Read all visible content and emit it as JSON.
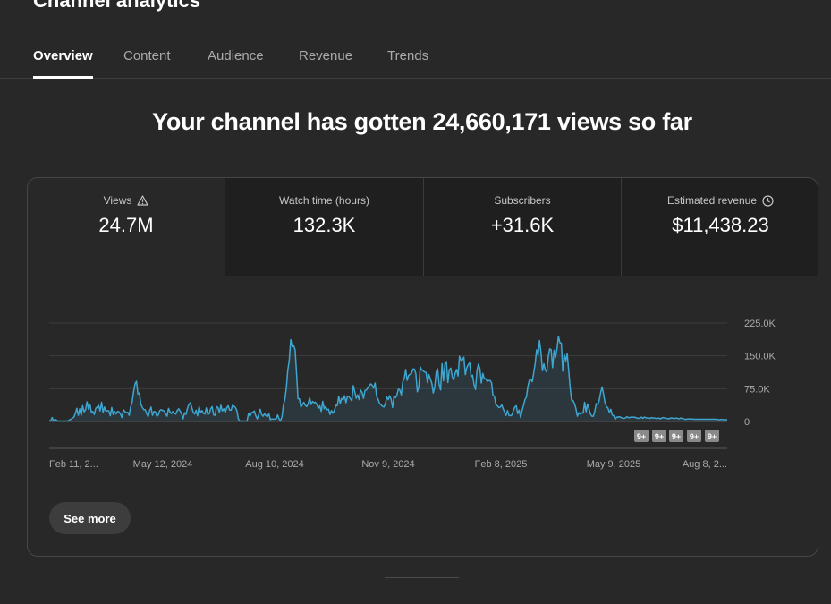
{
  "page": {
    "title": "Channel analytics"
  },
  "tabs": [
    {
      "label": "Overview",
      "active": true
    },
    {
      "label": "Content",
      "active": false
    },
    {
      "label": "Audience",
      "active": false
    },
    {
      "label": "Revenue",
      "active": false
    },
    {
      "label": "Trends",
      "active": false
    }
  ],
  "headline": "Your channel has gotten 24,660,171 views so far",
  "metrics": [
    {
      "label": "Views",
      "value": "24.7M",
      "icon": "warning-icon",
      "selected": true
    },
    {
      "label": "Watch time (hours)",
      "value": "132.3K",
      "icon": "",
      "selected": false
    },
    {
      "label": "Subscribers",
      "value": "+31.6K",
      "icon": "",
      "selected": false
    },
    {
      "label": "Estimated revenue",
      "value": "$11,438.23",
      "icon": "clock-icon",
      "selected": false
    }
  ],
  "see_more_label": "See more",
  "colors": {
    "line": "#3ea6d0",
    "accent_bg": "#282828"
  },
  "chart_data": {
    "type": "line",
    "series_metric": "Views",
    "x_tick_labels": [
      "Feb 11, 2...",
      "May 12, 2024",
      "Aug 10, 2024",
      "Nov 9, 2024",
      "Feb 8, 2025",
      "May 9, 2025",
      "Aug 8, 2..."
    ],
    "y_tick_labels": [
      "225.0K",
      "150.0K",
      "75.0K",
      "0"
    ],
    "ylim": [
      0,
      225000
    ],
    "grid": true,
    "markers": [
      "9+",
      "9+",
      "9+",
      "9+",
      "9+"
    ],
    "values": [
      2000,
      1000,
      9000,
      1000,
      5000,
      3000,
      1000,
      1000,
      1000,
      1000,
      1000,
      1000,
      1000,
      1000,
      4000,
      5000,
      8000,
      10000,
      19000,
      30000,
      14000,
      29000,
      14000,
      36000,
      22000,
      27000,
      45000,
      28000,
      39000,
      21000,
      23000,
      16000,
      30000,
      33000,
      37000,
      24000,
      44000,
      21000,
      33000,
      23000,
      25000,
      24000,
      13000,
      32000,
      16000,
      23000,
      17000,
      23000,
      22000,
      17000,
      9000,
      27000,
      23000,
      20000,
      21000,
      14000,
      34000,
      44000,
      68000,
      86000,
      92000,
      63000,
      65000,
      40000,
      32000,
      27000,
      27000,
      18000,
      11000,
      24000,
      33000,
      14000,
      23000,
      22000,
      12000,
      15000,
      25000,
      27000,
      25000,
      24000,
      18000,
      12000,
      30000,
      22000,
      18000,
      23000,
      19000,
      17000,
      25000,
      29000,
      24000,
      17000,
      6000,
      20000,
      16000,
      30000,
      39000,
      43000,
      32000,
      21000,
      17000,
      26000,
      13000,
      34000,
      20000,
      25000,
      19000,
      17000,
      31000,
      16000,
      18000,
      29000,
      34000,
      15000,
      14000,
      34000,
      32000,
      21000,
      37000,
      24000,
      29000,
      21000,
      31000,
      36000,
      26000,
      26000,
      37000,
      35000,
      32000,
      25000,
      6000,
      1000,
      1000,
      1000,
      1000,
      1000,
      1000,
      19000,
      12000,
      20000,
      21000,
      24000,
      13000,
      6000,
      16000,
      28000,
      16000,
      12000,
      18000,
      13000,
      11000,
      18000,
      4000,
      6000,
      5000,
      6000,
      6000,
      15000,
      6000,
      1000,
      11000,
      38000,
      51000,
      77000,
      118000,
      140000,
      187000,
      171000,
      174000,
      164000,
      111000,
      52000,
      52000,
      33000,
      38000,
      44000,
      37000,
      34000,
      41000,
      54000,
      39000,
      46000,
      43000,
      44000,
      39000,
      30000,
      36000,
      23000,
      46000,
      29000,
      34000,
      27000,
      28000,
      16000,
      25000,
      19000,
      25000,
      37000,
      36000,
      58000,
      41000,
      53000,
      49000,
      59000,
      43000,
      58000,
      57000,
      52000,
      47000,
      82000,
      68000,
      53000,
      61000,
      50000,
      72000,
      67000,
      53000,
      71000,
      72000,
      77000,
      82000,
      86000,
      83000,
      76000,
      88000,
      58000,
      51000,
      42000,
      38000,
      35000,
      33000,
      40000,
      56000,
      50000,
      59000,
      51000,
      32000,
      58000,
      54000,
      61000,
      74000,
      72000,
      61000,
      91000,
      98000,
      119000,
      94000,
      105000,
      108000,
      110000,
      120000,
      120000,
      109000,
      68000,
      78000,
      125000,
      118000,
      116000,
      113000,
      112000,
      89000,
      107000,
      97000,
      87000,
      65000,
      80000,
      113000,
      120000,
      85000,
      72000,
      132000,
      93000,
      132000,
      137000,
      89000,
      118000,
      122000,
      103000,
      95000,
      110000,
      119000,
      104000,
      149000,
      140000,
      141000,
      147000,
      107000,
      123000,
      130000,
      134000,
      102000,
      106000,
      84000,
      73000,
      116000,
      131000,
      121000,
      88000,
      110000,
      98000,
      98000,
      92000,
      93000,
      94000,
      89000,
      60000,
      58000,
      38000,
      36000,
      32000,
      33000,
      38000,
      29000,
      21000,
      14000,
      25000,
      14000,
      13000,
      15000,
      25000,
      33000,
      36000,
      18000,
      26000,
      9000,
      25000,
      37000,
      50000,
      56000,
      80000,
      94000,
      96000,
      91000,
      111000,
      132000,
      164000,
      151000,
      185000,
      158000,
      116000,
      132000,
      117000,
      113000,
      148000,
      166000,
      164000,
      123000,
      163000,
      146000,
      166000,
      195000,
      180000,
      179000,
      115000,
      153000,
      138000,
      155000,
      119000,
      79000,
      49000,
      48000,
      41000,
      30000,
      12000,
      20000,
      17000,
      20000,
      19000,
      44000,
      22000,
      40000,
      29000,
      17000,
      12000,
      12000,
      24000,
      41000,
      39000,
      48000,
      66000,
      79000,
      63000,
      43000,
      34000,
      31000,
      21000,
      28000,
      15000,
      13000,
      5000,
      10000,
      10000,
      11000,
      9000,
      8000,
      7000,
      8000,
      11000,
      9000,
      9000,
      10000,
      10000,
      10000,
      9000,
      8000,
      7000,
      8000,
      10000,
      7000,
      10000,
      9000,
      8000,
      8000,
      7000,
      9000,
      8000,
      8000,
      7000,
      7000,
      8000,
      6000,
      8000,
      9000,
      8000,
      7000,
      7000,
      6000,
      8000,
      8000,
      7000,
      7000,
      8000,
      7000,
      6000,
      8000,
      7000,
      6000,
      5000,
      5000,
      6000,
      6000,
      5000,
      6000,
      5000,
      5000,
      5000,
      5000,
      5000,
      5000,
      5000,
      5000,
      5000,
      5000,
      5000,
      5000,
      5000,
      5000,
      5000,
      5000,
      5000,
      4000,
      4000,
      5000,
      4000,
      4000,
      4000,
      4000
    ]
  }
}
